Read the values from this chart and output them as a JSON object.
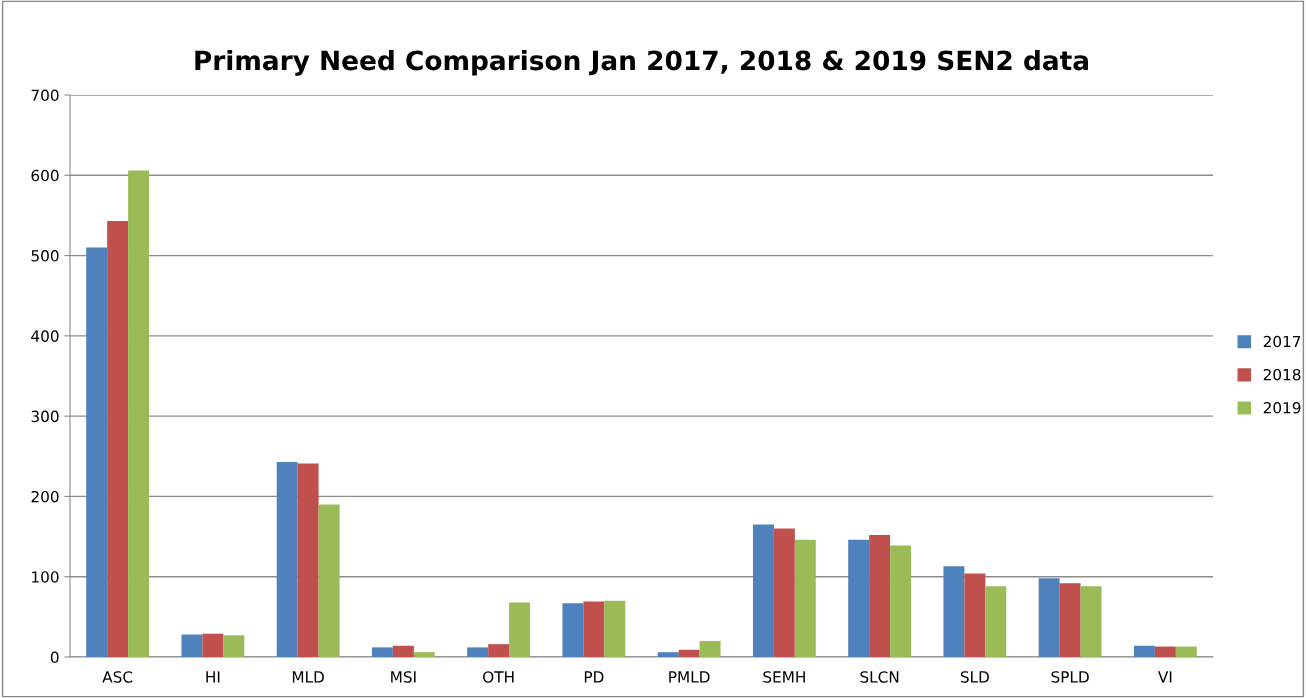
{
  "chart_data": {
    "type": "bar",
    "title": "Primary Need Comparison Jan 2017, 2018 & 2019 SEN2 data",
    "categories": [
      "ASC",
      "HI",
      "MLD",
      "MSI",
      "OTH",
      "PD",
      "PMLD",
      "SEMH",
      "SLCN",
      "SLD",
      "SPLD",
      "VI"
    ],
    "series": [
      {
        "name": "2017",
        "color": "#4f81bd",
        "values": [
          510,
          28,
          243,
          12,
          12,
          67,
          6,
          165,
          146,
          113,
          98,
          14
        ]
      },
      {
        "name": "2018",
        "color": "#c0504d",
        "values": [
          543,
          29,
          241,
          14,
          16,
          69,
          9,
          160,
          152,
          104,
          92,
          13
        ]
      },
      {
        "name": "2019",
        "color": "#9bbb59",
        "values": [
          606,
          27,
          190,
          6,
          68,
          70,
          20,
          146,
          139,
          88,
          88,
          13
        ]
      }
    ],
    "ylim": [
      0,
      700
    ],
    "yticks": [
      0,
      100,
      200,
      300,
      400,
      500,
      600,
      700
    ],
    "grid": "y",
    "legend": "right"
  }
}
